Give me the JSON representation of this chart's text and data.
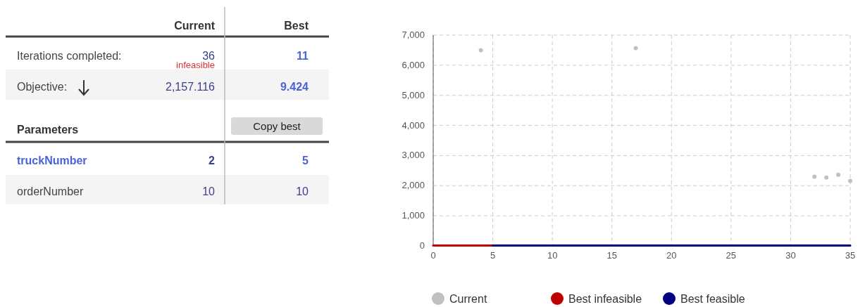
{
  "chart_data": [
    {
      "type": "other",
      "categories": [
        "Current",
        "Best"
      ],
      "y_categories": [
        "Iterations completed:",
        "Objective:",
        "truckNumber",
        "orderNumber"
      ],
      "cell_labels": [
        [
          "36",
          "11"
        ],
        [
          "2,157.116",
          "9.424"
        ],
        [
          "2",
          "5"
        ],
        [
          "10",
          "10"
        ]
      ],
      "annotations": [
        "infeasible",
        "Parameters",
        "Copy best"
      ]
    },
    {
      "type": "line",
      "xlim": [
        0,
        35
      ],
      "ylim": [
        0,
        7000
      ],
      "xticks": [
        0,
        5,
        10,
        15,
        20,
        25,
        30,
        35
      ],
      "yticks": [
        0,
        {
          "value": 1000,
          "label": "1,000"
        },
        {
          "value": 2000,
          "label": "2,000"
        },
        {
          "value": 3000,
          "label": "3,000"
        },
        {
          "value": 4000,
          "label": "4,000"
        },
        {
          "value": 5000,
          "label": "5,000"
        },
        {
          "value": 6000,
          "label": "6,000"
        },
        {
          "value": 7000,
          "label": "7,000"
        }
      ],
      "grid": true,
      "legend": "bottom",
      "series": [
        {
          "name": "Current",
          "type": "scatter",
          "marker": "circle",
          "color": "#c0c0c0",
          "x": [
            4,
            17,
            32,
            33,
            34,
            35
          ],
          "values": [
            6500,
            6570,
            2300,
            2270,
            2360,
            2160
          ]
        },
        {
          "name": "Best infeasible",
          "type": "line",
          "color": "#c00000",
          "x": [
            0,
            5
          ],
          "values": [
            10,
            10
          ]
        },
        {
          "name": "Best feasible",
          "type": "line",
          "color": "#000080",
          "x": [
            5,
            35
          ],
          "values": [
            10,
            10
          ]
        }
      ]
    }
  ]
}
